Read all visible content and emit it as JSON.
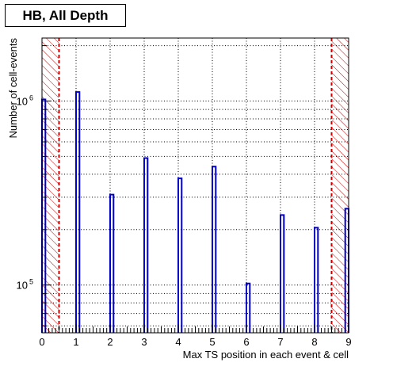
{
  "chart_data": {
    "type": "bar",
    "title": "HB, All Depth",
    "xlabel": "Max TS position in each event & cell",
    "ylabel": "Number of cell-events",
    "xlim": [
      0,
      9
    ],
    "ylim": [
      55000,
      2200000
    ],
    "y_scale": "log",
    "x_ticks": [
      0,
      1,
      2,
      3,
      4,
      5,
      6,
      7,
      8,
      9
    ],
    "y_tick_labels": [
      {
        "base": "10",
        "exp": "5",
        "value": 100000
      },
      {
        "base": "10",
        "exp": "6",
        "value": 1000000
      }
    ],
    "grid": true,
    "bin_width": 0.1,
    "bars": [
      {
        "x": 0.0,
        "value": 1020000
      },
      {
        "x": 1.0,
        "value": 1120000
      },
      {
        "x": 2.0,
        "value": 310000
      },
      {
        "x": 3.0,
        "value": 490000
      },
      {
        "x": 4.0,
        "value": 380000
      },
      {
        "x": 5.0,
        "value": 440000
      },
      {
        "x": 6.0,
        "value": 102000
      },
      {
        "x": 7.0,
        "value": 240000
      },
      {
        "x": 8.0,
        "value": 205000
      },
      {
        "x": 8.9,
        "value": 260000
      }
    ],
    "cut_lines": [
      0.5,
      8.5
    ],
    "colors": {
      "bars": "#0000cc",
      "cut_lines": "#cc0000",
      "hatch": "#cc0000",
      "grid": "#000000"
    }
  }
}
